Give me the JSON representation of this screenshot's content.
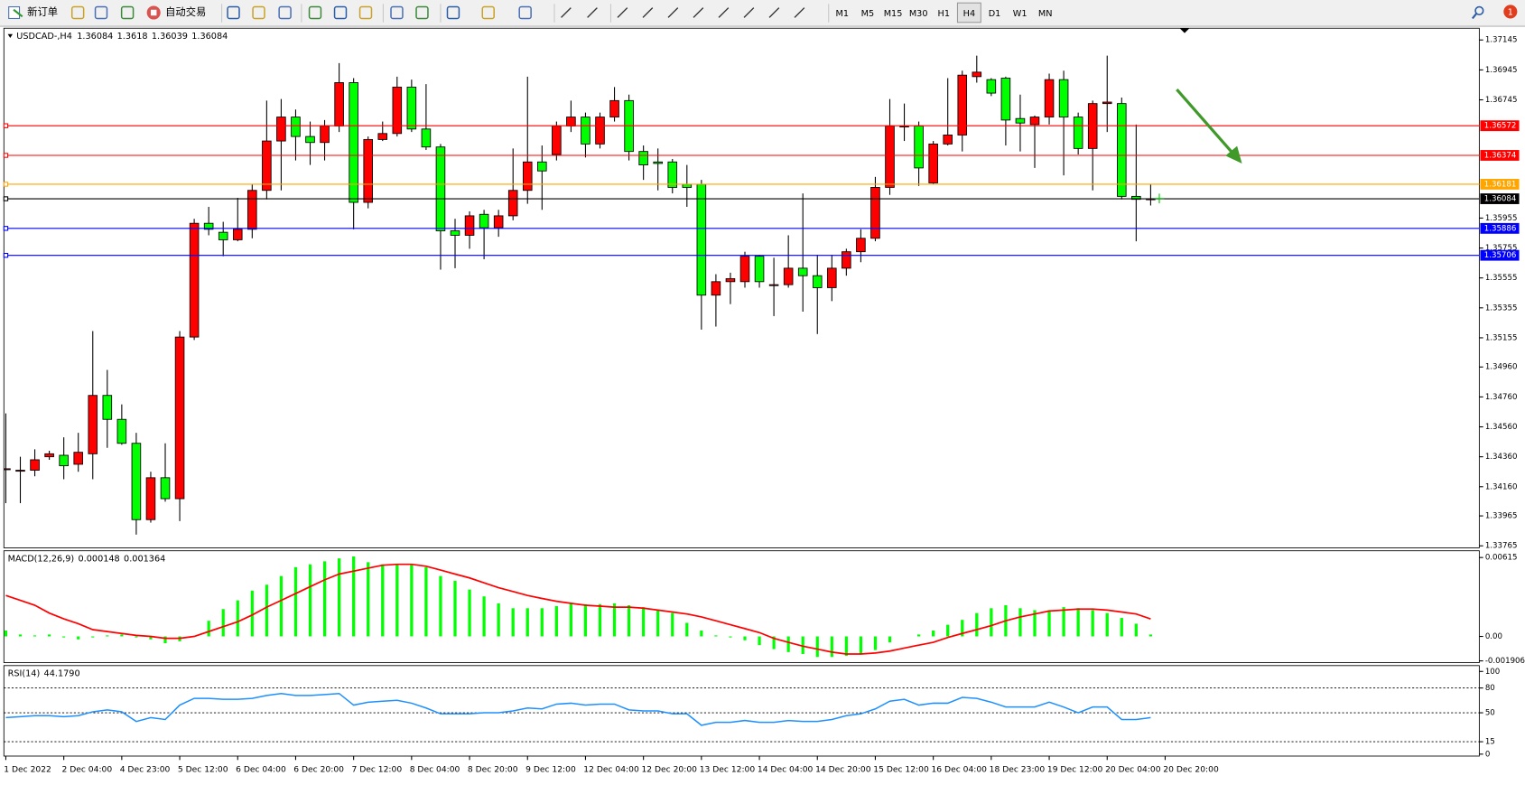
{
  "toolbar": {
    "new_order": "新订单",
    "auto_trading": "自动交易",
    "timeframes": [
      "M1",
      "M5",
      "M15",
      "M30",
      "H1",
      "H4",
      "D1",
      "W1",
      "MN"
    ],
    "active_timeframe": "H4",
    "notifications": 1
  },
  "chart_data": {
    "type": "candlestick",
    "symbol": "USDCAD-,H4",
    "up_color": "#ff0000",
    "down_color": "#00ff00",
    "ylim": [
      1.33758,
      1.37217
    ],
    "yticks": [
      1.37145,
      1.36945,
      1.36745,
      1.35955,
      1.35755,
      1.35555,
      1.35355,
      1.35155,
      {
        "value": 1.3496,
        "label": "1.34960"
      },
      {
        "value": 1.3476,
        "label": "1.34760"
      },
      {
        "value": 1.3456,
        "label": "1.34560"
      },
      {
        "value": 1.3436,
        "label": "1.34360"
      },
      {
        "value": 1.3416,
        "label": "1.34160"
      },
      1.33965,
      1.33765
    ],
    "price_lines": [
      {
        "value": 1.36572,
        "color": "#ff0000"
      },
      {
        "value": 1.36374,
        "color": "#ff0000"
      },
      {
        "value": 1.36181,
        "color": "#ffa500"
      },
      {
        "value": 1.36084,
        "color": "#000000"
      },
      {
        "value": 1.35886,
        "color": "#0000ff"
      },
      {
        "value": 1.35706,
        "color": "#0000ff"
      }
    ],
    "time_labels": [
      "1 Dec 2022",
      "2 Dec 04:00",
      "4 Dec 23:00",
      "5 Dec 12:00",
      "6 Dec 04:00",
      "6 Dec 20:00",
      "7 Dec 12:00",
      "8 Dec 04:00",
      "8 Dec 20:00",
      "9 Dec 12:00",
      "12 Dec 04:00",
      "12 Dec 20:00",
      "13 Dec 12:00",
      "14 Dec 04:00",
      "14 Dec 20:00",
      "15 Dec 12:00",
      "16 Dec 04:00",
      "18 Dec 23:00",
      "19 Dec 12:00",
      "20 Dec 04:00",
      "20 Dec 20:00"
    ],
    "ohlc": [
      [
        1.3428,
        1.3465,
        1.3405,
        1.3428
      ],
      [
        1.3427,
        1.3436,
        1.3405,
        1.3427
      ],
      [
        1.3427,
        1.3441,
        1.3423,
        1.3434
      ],
      [
        1.3436,
        1.344,
        1.3434,
        1.3438
      ],
      [
        1.3437,
        1.3449,
        1.3421,
        1.343
      ],
      [
        1.3431,
        1.3452,
        1.3426,
        1.3439
      ],
      [
        1.3438,
        1.352,
        1.3421,
        1.3477
      ],
      [
        1.3477,
        1.3494,
        1.3442,
        1.3461
      ],
      [
        1.3461,
        1.3471,
        1.3444,
        1.3445
      ],
      [
        1.3445,
        1.3452,
        1.3384,
        1.3394
      ],
      [
        1.3394,
        1.3426,
        1.3392,
        1.3422
      ],
      [
        1.3422,
        1.3445,
        1.3406,
        1.3408
      ],
      [
        1.3408,
        1.352,
        1.3393,
        1.3516
      ],
      [
        1.3516,
        1.3595,
        1.3514,
        1.3592
      ],
      [
        1.3592,
        1.3603,
        1.3584,
        1.3588
      ],
      [
        1.3586,
        1.3593,
        1.357,
        1.3581
      ],
      [
        1.3581,
        1.3609,
        1.358,
        1.3588
      ],
      [
        1.3588,
        1.3618,
        1.3582,
        1.3614
      ],
      [
        1.3614,
        1.3674,
        1.3608,
        1.3647
      ],
      [
        1.3647,
        1.3675,
        1.3614,
        1.3663
      ],
      [
        1.3663,
        1.3668,
        1.3634,
        1.365
      ],
      [
        1.365,
        1.366,
        1.3631,
        1.3646
      ],
      [
        1.3646,
        1.3661,
        1.3634,
        1.3657
      ],
      [
        1.3657,
        1.3699,
        1.3653,
        1.3686
      ],
      [
        1.3686,
        1.3689,
        1.3588,
        1.3606
      ],
      [
        1.3606,
        1.365,
        1.3602,
        1.3648
      ],
      [
        1.3648,
        1.366,
        1.3647,
        1.3652
      ],
      [
        1.3652,
        1.369,
        1.365,
        1.3683
      ],
      [
        1.3683,
        1.3688,
        1.3653,
        1.3655
      ],
      [
        1.3655,
        1.3685,
        1.3641,
        1.3643
      ],
      [
        1.3643,
        1.3645,
        1.3561,
        1.3587
      ],
      [
        1.3587,
        1.3595,
        1.3562,
        1.3584
      ],
      [
        1.3584,
        1.36,
        1.3575,
        1.3597
      ],
      [
        1.3598,
        1.3601,
        1.3568,
        1.3589
      ],
      [
        1.3589,
        1.3601,
        1.3583,
        1.3597
      ],
      [
        1.3597,
        1.3642,
        1.3594,
        1.3614
      ],
      [
        1.3614,
        1.369,
        1.3605,
        1.3633
      ],
      [
        1.3633,
        1.3644,
        1.3601,
        1.3627
      ],
      [
        1.3638,
        1.366,
        1.3634,
        1.3657
      ],
      [
        1.3657,
        1.3674,
        1.3653,
        1.3663
      ],
      [
        1.3663,
        1.3666,
        1.3636,
        1.3645
      ],
      [
        1.3645,
        1.3666,
        1.3642,
        1.3663
      ],
      [
        1.3663,
        1.3683,
        1.366,
        1.3674
      ],
      [
        1.3674,
        1.3678,
        1.3634,
        1.364
      ],
      [
        1.364,
        1.3644,
        1.3621,
        1.3631
      ],
      [
        1.3633,
        1.3642,
        1.3614,
        1.3632
      ],
      [
        1.3633,
        1.3635,
        1.3612,
        1.3616
      ],
      [
        1.3618,
        1.3631,
        1.3603,
        1.3616
      ],
      [
        1.3618,
        1.3621,
        1.3521,
        1.3544
      ],
      [
        1.3544,
        1.3558,
        1.3523,
        1.3553
      ],
      [
        1.3553,
        1.3559,
        1.3538,
        1.3555
      ],
      [
        1.3553,
        1.3573,
        1.3549,
        1.357
      ],
      [
        1.357,
        1.3571,
        1.3549,
        1.3553
      ],
      [
        1.3551,
        1.3569,
        1.353,
        1.3551
      ],
      [
        1.3551,
        1.3584,
        1.3549,
        1.3562
      ],
      [
        1.3562,
        1.3612,
        1.3533,
        1.3557
      ],
      [
        1.3557,
        1.3571,
        1.3518,
        1.3549
      ],
      [
        1.3549,
        1.3571,
        1.354,
        1.3562
      ],
      [
        1.3562,
        1.3575,
        1.3557,
        1.3573
      ],
      [
        1.3573,
        1.3588,
        1.3566,
        1.3582
      ],
      [
        1.3582,
        1.3623,
        1.358,
        1.3616
      ],
      [
        1.3616,
        1.3675,
        1.3611,
        1.3657
      ],
      [
        1.3657,
        1.3672,
        1.3647,
        1.3657
      ],
      [
        1.3657,
        1.366,
        1.3617,
        1.3629
      ],
      [
        1.3619,
        1.3647,
        1.3618,
        1.3645
      ],
      [
        1.3645,
        1.3689,
        1.3644,
        1.3651
      ],
      [
        1.3651,
        1.3694,
        1.364,
        1.3691
      ],
      [
        1.369,
        1.3704,
        1.3686,
        1.3693
      ],
      [
        1.3688,
        1.3689,
        1.3677,
        1.3679
      ],
      [
        1.3689,
        1.369,
        1.3644,
        1.3661
      ],
      [
        1.3662,
        1.3678,
        1.364,
        1.3659
      ],
      [
        1.3658,
        1.3664,
        1.3629,
        1.3663
      ],
      [
        1.3663,
        1.3692,
        1.3658,
        1.3688
      ],
      [
        1.3688,
        1.3694,
        1.3624,
        1.3663
      ],
      [
        1.3663,
        1.3666,
        1.3638,
        1.3642
      ],
      [
        1.3642,
        1.3674,
        1.3614,
        1.3672
      ],
      [
        1.3672,
        1.3704,
        1.3653,
        1.3673
      ],
      [
        1.3672,
        1.3676,
        1.3608,
        1.361
      ],
      [
        1.361,
        1.3658,
        1.358,
        1.3608
      ],
      [
        1.36084,
        1.3618,
        1.36039,
        1.36084
      ]
    ],
    "macd": {
      "title": "MACD(12,26,9)",
      "histogram_color": "#00ff00",
      "signal_color": "#ff0000",
      "ylim": [
        -0.00197,
        0.0066
      ],
      "yticks": [
        0.00615,
        {
          "value": 0,
          "label": "0.00"
        },
        -0.001906
      ],
      "histogram": [
        0.00046,
        0.00015,
        8e-05,
        0.00015,
        -8e-05,
        -0.00023,
        -8e-05,
        8e-05,
        0.00015,
        -8e-05,
        -0.00023,
        -0.00053,
        -0.00038,
        0,
        0.00122,
        0.00213,
        0.00281,
        0.00357,
        0.00403,
        0.00471,
        0.0054,
        0.00562,
        0.00585,
        0.00608,
        0.00623,
        0.00578,
        0.00562,
        0.00562,
        0.00562,
        0.0054,
        0.00471,
        0.00433,
        0.00365,
        0.00312,
        0.00258,
        0.0022,
        0.0022,
        0.0022,
        0.00236,
        0.00258,
        0.00251,
        0.00251,
        0.00258,
        0.00243,
        0.00228,
        0.00205,
        0.00182,
        0.00106,
        0.00046,
        8e-05,
        -8e-05,
        -0.0003,
        -0.00068,
        -0.00099,
        -0.00122,
        -0.00137,
        -0.0016,
        -0.0016,
        -0.00152,
        -0.00137,
        -0.00106,
        -0.00046,
        0,
        0.00015,
        0.00046,
        0.00091,
        0.00129,
        0.00182,
        0.0022,
        0.00243,
        0.0022,
        0.00205,
        0.00205,
        0.00228,
        0.0022,
        0.00205,
        0.00182,
        0.00144,
        0.00099,
        0.000148
      ],
      "signal": [
        0.00319,
        0.00281,
        0.00243,
        0.00182,
        0.00137,
        0.00099,
        0.00053,
        0.00038,
        0.00023,
        8e-05,
        0,
        -0.00015,
        -0.00015,
        0,
        0.00038,
        0.00076,
        0.00114,
        0.00167,
        0.00228,
        0.00281,
        0.00334,
        0.00388,
        0.00441,
        0.00486,
        0.00509,
        0.00532,
        0.00555,
        0.00562,
        0.00562,
        0.00547,
        0.00517,
        0.00486,
        0.00456,
        0.00418,
        0.0038,
        0.0035,
        0.00319,
        0.00296,
        0.00274,
        0.00258,
        0.00243,
        0.00236,
        0.00228,
        0.00228,
        0.0022,
        0.00205,
        0.0019,
        0.00175,
        0.00152,
        0.00122,
        0.00091,
        0.00061,
        0.0003,
        -0.00015,
        -0.00046,
        -0.00076,
        -0.00099,
        -0.00122,
        -0.00137,
        -0.00137,
        -0.00129,
        -0.00114,
        -0.00091,
        -0.00068,
        -0.00046,
        -8e-05,
        0.00023,
        0.00053,
        0.00084,
        0.00122,
        0.00152,
        0.00175,
        0.00198,
        0.00205,
        0.00213,
        0.00213,
        0.00205,
        0.0019,
        0.00175,
        0.001364
      ]
    },
    "rsi": {
      "title": "RSI(14)",
      "color": "#1e90ff",
      "ylim": [
        0,
        100
      ],
      "yticks": [
        100,
        80,
        50,
        15,
        0
      ],
      "levels": [
        80,
        50,
        15
      ],
      "last_label": "44.1790",
      "values": [
        44.2,
        45.3,
        46.5,
        46.5,
        45.3,
        46.5,
        51.2,
        53.5,
        51.2,
        39.5,
        44.2,
        41.9,
        59.3,
        67.4,
        67.4,
        66.3,
        66.3,
        67.4,
        70.9,
        73.3,
        70.9,
        70.9,
        72.1,
        73.3,
        59.3,
        62.8,
        64.0,
        65.1,
        61.6,
        55.8,
        48.8,
        48.8,
        48.8,
        50.0,
        50.0,
        52.3,
        55.8,
        54.7,
        60.5,
        61.6,
        59.3,
        60.5,
        60.5,
        53.5,
        52.3,
        52.3,
        48.8,
        48.8,
        34.9,
        38.4,
        38.4,
        40.7,
        38.4,
        38.4,
        40.7,
        39.5,
        39.5,
        41.9,
        46.5,
        48.8,
        54.7,
        64.0,
        66.3,
        59.3,
        61.6,
        61.6,
        68.6,
        67.4,
        62.8,
        57.0,
        57.0,
        57.0,
        62.8,
        57.0,
        50.0,
        57.0,
        57.0,
        41.9,
        41.9,
        44.179
      ]
    }
  }
}
